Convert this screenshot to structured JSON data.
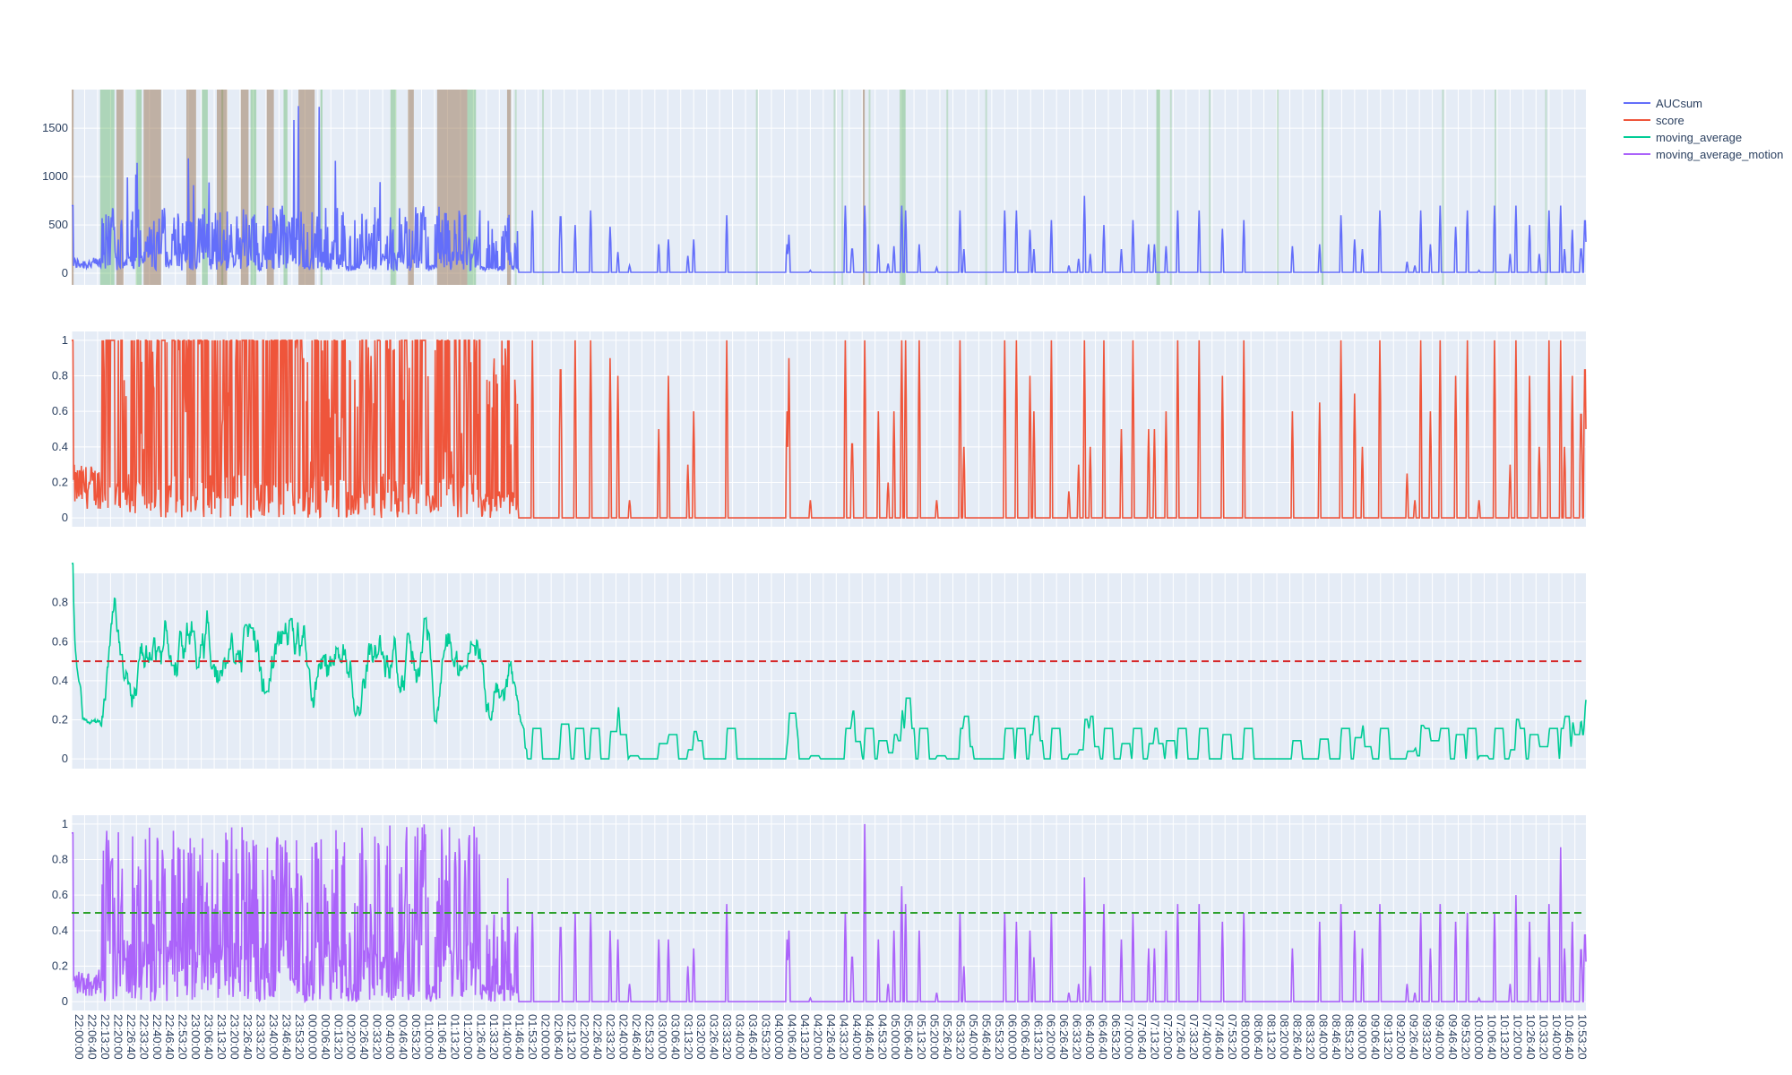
{
  "chart_data": {
    "type": "line",
    "x_start": "22:00:00",
    "x_end": "10:59:00",
    "x_tick_step_seconds": 400,
    "legend": {
      "placement": "top-right",
      "entries": [
        "AUCsum",
        "score",
        "moving_average",
        "moving_average_motion"
      ]
    },
    "grid": true,
    "colors": {
      "AUCsum": "#636efa",
      "score": "#ef553b",
      "moving_average": "#00cc96",
      "moving_average_motion": "#ab63fa",
      "threshold_ma": "#d62728",
      "threshold_motion": "#2ca02c",
      "band_brown": "#a08060",
      "band_green": "#2ca02c"
    },
    "subplots": [
      {
        "series": "AUCsum",
        "yticks": [
          0,
          500,
          1000,
          1500
        ],
        "ylim": [
          -120,
          1900
        ]
      },
      {
        "series": "score",
        "yticks": [
          0,
          0.2,
          0.4,
          0.6,
          0.8,
          1
        ],
        "ylim": [
          -0.05,
          1.05
        ]
      },
      {
        "series": "moving_average",
        "yticks": [
          0,
          0.2,
          0.4,
          0.6,
          0.8
        ],
        "ylim": [
          -0.05,
          0.95
        ],
        "threshold": 0.5
      },
      {
        "series": "moving_average_motion",
        "yticks": [
          0,
          0.2,
          0.4,
          0.6,
          0.8,
          1
        ],
        "ylim": [
          -0.05,
          1.05
        ],
        "threshold": 0.5
      }
    ],
    "active_periods": [
      [
        "22:00:00",
        "22:01:00"
      ],
      [
        "22:15:20",
        "22:35:00"
      ],
      [
        "22:29:00",
        "22:41:00"
      ],
      [
        "22:44:00",
        "23:16:40"
      ],
      [
        "23:14:40",
        "23:35:00"
      ],
      [
        "23:34:00",
        "23:44:00"
      ],
      [
        "23:40:20",
        "23:57:30"
      ],
      [
        "23:52:00",
        "23:58:30"
      ],
      [
        "00:02:30",
        "00:18:00"
      ],
      [
        "00:16:40",
        "00:21:00"
      ],
      [
        "00:28:00",
        "00:32:00"
      ],
      [
        "00:36:00",
        "00:44:00"
      ],
      [
        "00:46:00",
        "00:53:00"
      ],
      [
        "00:55:00",
        "01:02:00"
      ],
      [
        "01:08:00",
        "01:30:00"
      ],
      [
        "01:44:00",
        "01:46:00"
      ]
    ],
    "brown_bands": [
      [
        "22:00:00",
        "22:01:00"
      ],
      [
        "22:23:00",
        "22:26:40"
      ],
      [
        "22:37:00",
        "22:46:00"
      ],
      [
        "22:59:00",
        "23:04:00"
      ],
      [
        "23:14:40",
        "23:20:00"
      ],
      [
        "23:27:00",
        "23:31:00"
      ],
      [
        "23:40:20",
        "23:44:00"
      ],
      [
        "23:56:40",
        "24:05:00"
      ],
      [
        "00:53:00",
        "00:56:00"
      ],
      [
        "01:08:00",
        "01:23:30"
      ],
      [
        "01:44:00",
        "01:46:00"
      ],
      [
        "04:47:00",
        "04:48:00"
      ]
    ],
    "green_bands": [
      [
        "22:14:40",
        "22:22:00"
      ],
      [
        "22:33:00",
        "22:36:00"
      ],
      [
        "23:07:00",
        "23:10:00"
      ],
      [
        "23:17:00",
        "23:18:00"
      ],
      [
        "23:32:00",
        "23:35:00"
      ],
      [
        "23:49:00",
        "23:51:00"
      ],
      [
        "00:08:00",
        "00:09:00"
      ],
      [
        "00:44:00",
        "00:47:00"
      ],
      [
        "01:23:30",
        "01:28:00"
      ],
      [
        "05:06:00",
        "05:09:00"
      ],
      [
        "07:18:00",
        "07:20:00"
      ],
      [
        "08:43:00",
        "08:44:00"
      ]
    ],
    "faint_bands": [
      "01:48:00",
      "02:02:00",
      "03:52:00",
      "04:32:00",
      "04:36:00",
      "04:50:00",
      "05:30:00",
      "05:50:00",
      "07:25:00",
      "07:45:00",
      "08:20:00",
      "09:45:00",
      "10:12:00",
      "10:38:00"
    ],
    "spike_events": [
      {
        "t": "01:57:00",
        "score": 1,
        "auc": 650,
        "motion": 0.5
      },
      {
        "t": "02:11:30",
        "score": 1,
        "auc": 700,
        "motion": 0.5
      },
      {
        "t": "02:19:00",
        "score": 1,
        "auc": 500,
        "motion": 0.5
      },
      {
        "t": "02:27:00",
        "score": 1,
        "auc": 650,
        "motion": 0.5
      },
      {
        "t": "02:37:00",
        "score": 0.9,
        "auc": 480,
        "motion": 0.4
      },
      {
        "t": "02:41:00",
        "score": 0.8,
        "auc": 220,
        "motion": 0.35
      },
      {
        "t": "02:47:00",
        "score": 0.1,
        "auc": 80,
        "motion": 0.1
      },
      {
        "t": "03:02:00",
        "score": 0.5,
        "auc": 300,
        "motion": 0.35
      },
      {
        "t": "03:07:00",
        "score": 0.8,
        "auc": 350,
        "motion": 0.35
      },
      {
        "t": "03:17:00",
        "score": 0.3,
        "auc": 180,
        "motion": 0.2
      },
      {
        "t": "03:20:00",
        "score": 0.6,
        "auc": 350,
        "motion": 0.3
      },
      {
        "t": "03:37:00",
        "score": 1,
        "auc": 600,
        "motion": 0.55
      },
      {
        "t": "04:08:00",
        "score": 0.6,
        "auc": 300,
        "motion": 0.35
      },
      {
        "t": "04:09:00",
        "score": 0.9,
        "auc": 400,
        "motion": 0.4
      },
      {
        "t": "04:20:00",
        "score": 0.1,
        "auc": 30,
        "motion": 0.02
      },
      {
        "t": "04:38:00",
        "score": 1,
        "auc": 700,
        "motion": 0.5
      },
      {
        "t": "04:41:30",
        "score": 0.5,
        "auc": 300,
        "motion": 0.3
      },
      {
        "t": "04:48:00",
        "score": 1,
        "auc": 700,
        "motion": 1
      },
      {
        "t": "04:55:00",
        "score": 0.6,
        "auc": 300,
        "motion": 0.35
      },
      {
        "t": "05:00:00",
        "score": 0.2,
        "auc": 100,
        "motion": 0.1
      },
      {
        "t": "05:03:00",
        "score": 0.6,
        "auc": 280,
        "motion": 0.4
      },
      {
        "t": "05:07:00",
        "score": 1,
        "auc": 700,
        "motion": 0.65
      },
      {
        "t": "05:09:00",
        "score": 1,
        "auc": 650,
        "motion": 0.55
      },
      {
        "t": "05:16:00",
        "score": 1,
        "auc": 300,
        "motion": 0.4
      },
      {
        "t": "05:25:00",
        "score": 0.1,
        "auc": 60,
        "motion": 0.05
      },
      {
        "t": "05:37:00",
        "score": 1,
        "auc": 650,
        "motion": 0.5
      },
      {
        "t": "05:39:00",
        "score": 0.4,
        "auc": 250,
        "motion": 0.2
      },
      {
        "t": "06:00:00",
        "score": 1,
        "auc": 650,
        "motion": 0.5
      },
      {
        "t": "06:06:00",
        "score": 1,
        "auc": 650,
        "motion": 0.45
      },
      {
        "t": "06:13:00",
        "score": 0.8,
        "auc": 450,
        "motion": 0.4
      },
      {
        "t": "06:15:00",
        "score": 0.6,
        "auc": 250,
        "motion": 0.25
      },
      {
        "t": "06:24:00",
        "score": 1,
        "auc": 550,
        "motion": 0.5
      },
      {
        "t": "06:33:00",
        "score": 0.15,
        "auc": 80,
        "motion": 0.05
      },
      {
        "t": "06:38:00",
        "score": 0.3,
        "auc": 150,
        "motion": 0.1
      },
      {
        "t": "06:41:00",
        "score": 1,
        "auc": 800,
        "motion": 0.7
      },
      {
        "t": "06:44:00",
        "score": 0.4,
        "auc": 200,
        "motion": 0.2
      },
      {
        "t": "06:51:00",
        "score": 1,
        "auc": 500,
        "motion": 0.55
      },
      {
        "t": "07:00:00",
        "score": 0.5,
        "auc": 250,
        "motion": 0.35
      },
      {
        "t": "07:06:00",
        "score": 1,
        "auc": 550,
        "motion": 0.5
      },
      {
        "t": "07:14:00",
        "score": 0.5,
        "auc": 300,
        "motion": 0.3
      },
      {
        "t": "07:17:00",
        "score": 0.5,
        "auc": 300,
        "motion": 0.3
      },
      {
        "t": "07:23:00",
        "score": 0.6,
        "auc": 280,
        "motion": 0.4
      },
      {
        "t": "07:29:00",
        "score": 1,
        "auc": 650,
        "motion": 0.55
      },
      {
        "t": "07:40:00",
        "score": 1,
        "auc": 650,
        "motion": 0.55
      },
      {
        "t": "07:52:00",
        "score": 0.8,
        "auc": 460,
        "motion": 0.45
      },
      {
        "t": "08:03:00",
        "score": 1,
        "auc": 550,
        "motion": 0.5
      },
      {
        "t": "08:28:00",
        "score": 0.6,
        "auc": 280,
        "motion": 0.3
      },
      {
        "t": "08:42:00",
        "score": 0.65,
        "auc": 300,
        "motion": 0.45
      },
      {
        "t": "08:53:00",
        "score": 1,
        "auc": 600,
        "motion": 0.55
      },
      {
        "t": "09:00:00",
        "score": 0.7,
        "auc": 350,
        "motion": 0.4
      },
      {
        "t": "09:04:00",
        "score": 0.4,
        "auc": 250,
        "motion": 0.3
      },
      {
        "t": "09:13:00",
        "score": 1,
        "auc": 650,
        "motion": 0.55
      },
      {
        "t": "09:27:00",
        "score": 0.25,
        "auc": 120,
        "motion": 0.1
      },
      {
        "t": "09:31:00",
        "score": 0.1,
        "auc": 80,
        "motion": 0.05
      },
      {
        "t": "09:34:00",
        "score": 1,
        "auc": 650,
        "motion": 0.5
      },
      {
        "t": "09:39:00",
        "score": 0.6,
        "auc": 300,
        "motion": 0.3
      },
      {
        "t": "09:44:00",
        "score": 1,
        "auc": 700,
        "motion": 0.55
      },
      {
        "t": "09:52:00",
        "score": 0.8,
        "auc": 480,
        "motion": 0.45
      },
      {
        "t": "09:58:00",
        "score": 1,
        "auc": 650,
        "motion": 0.5
      },
      {
        "t": "10:04:00",
        "score": 0.1,
        "auc": 30,
        "motion": 0.02
      },
      {
        "t": "10:12:00",
        "score": 1,
        "auc": 700,
        "motion": 0.5
      },
      {
        "t": "10:20:00",
        "score": 0.3,
        "auc": 200,
        "motion": 0.1
      },
      {
        "t": "10:23:00",
        "score": 1,
        "auc": 700,
        "motion": 0.6
      },
      {
        "t": "10:30:00",
        "score": 0.8,
        "auc": 500,
        "motion": 0.45
      },
      {
        "t": "10:35:00",
        "score": 0.4,
        "auc": 200,
        "motion": 0.25
      },
      {
        "t": "10:40:00",
        "score": 1,
        "auc": 650,
        "motion": 0.55
      },
      {
        "t": "10:46:00",
        "score": 1,
        "auc": 700,
        "motion": 0.87
      },
      {
        "t": "10:48:00",
        "score": 0.4,
        "auc": 250,
        "motion": 0.3
      },
      {
        "t": "10:52:00",
        "score": 0.8,
        "auc": 450,
        "motion": 0.45
      },
      {
        "t": "10:56:30",
        "score": 0.7,
        "auc": 300,
        "motion": 0.35
      },
      {
        "t": "10:58:30",
        "score": 1,
        "auc": 650,
        "motion": 0.45
      }
    ]
  }
}
